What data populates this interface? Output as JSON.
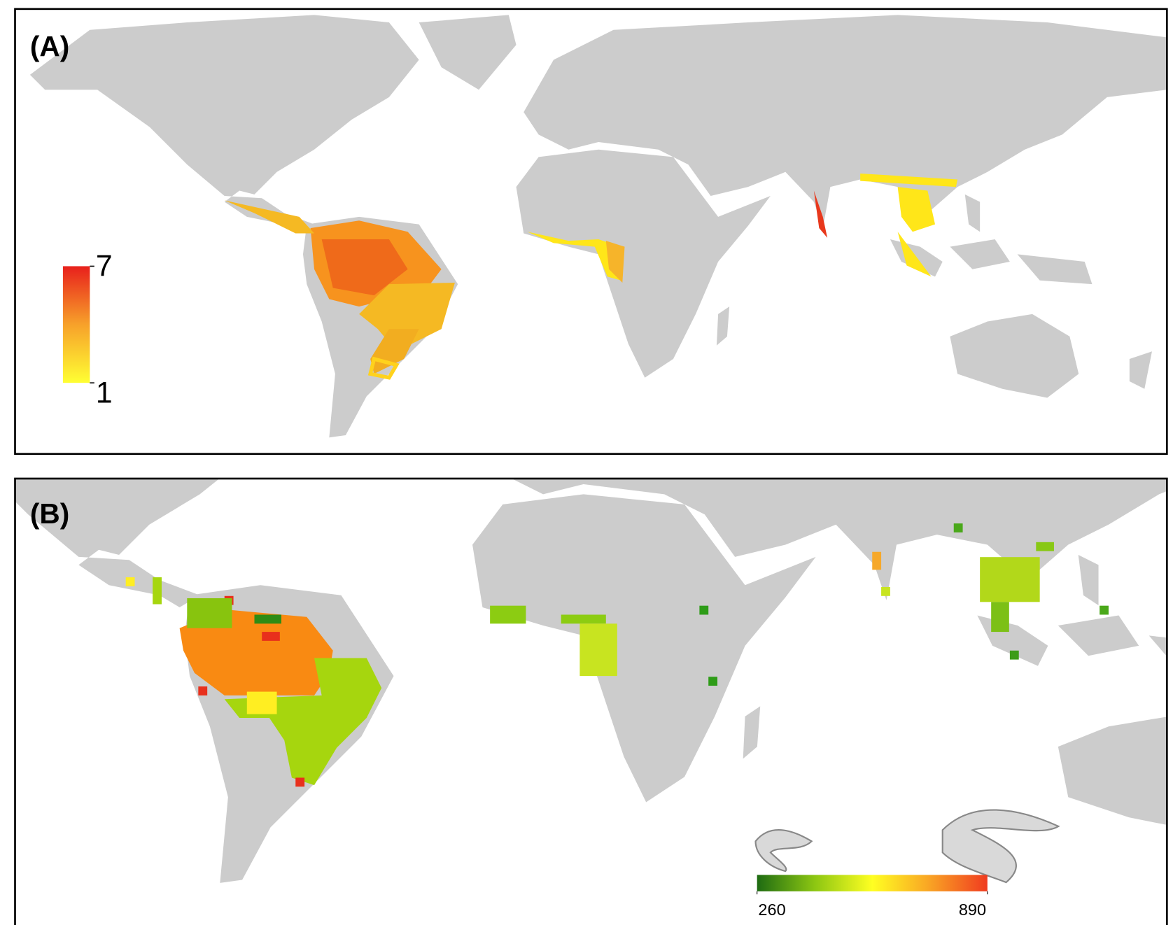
{
  "panels": [
    {
      "label": "(A)",
      "legend": {
        "min": 1,
        "max": 7
      }
    },
    {
      "label": "(B)",
      "legend": {
        "min": 260,
        "max": 890
      }
    }
  ]
}
